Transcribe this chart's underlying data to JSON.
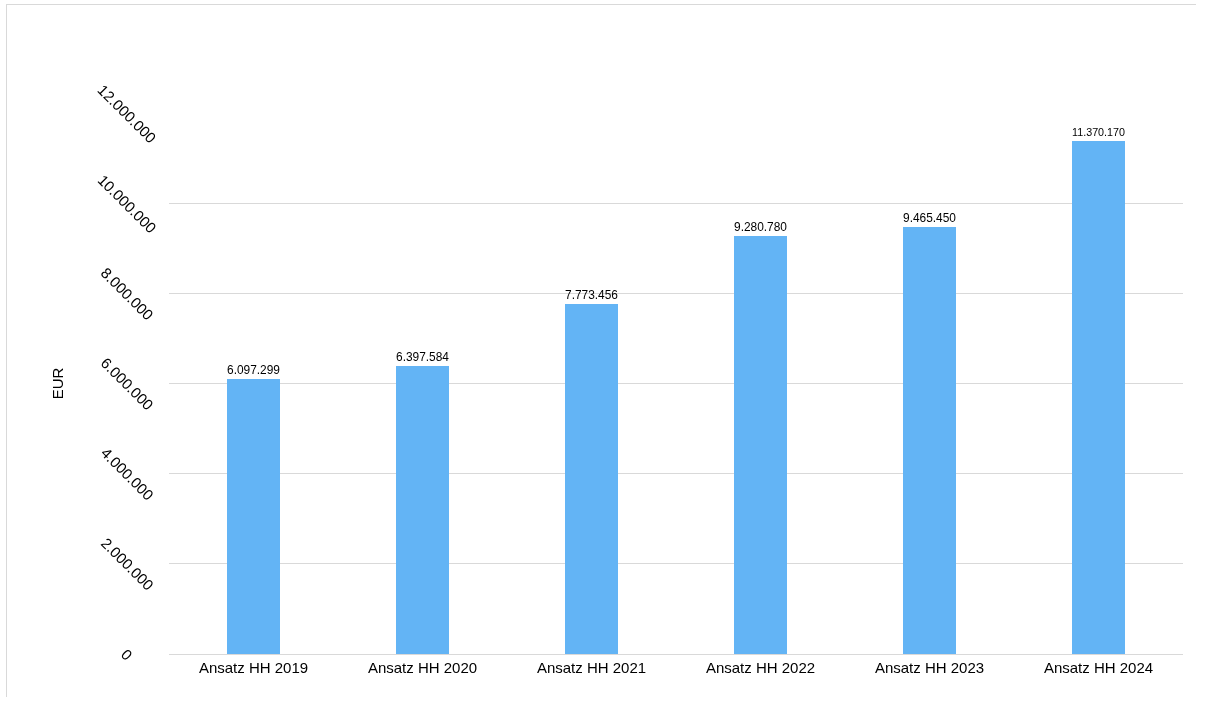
{
  "chart_data": {
    "type": "bar",
    "ylabel": "EUR",
    "categories": [
      "Ansatz HH 2019",
      "Ansatz HH 2020",
      "Ansatz HH 2021",
      "Ansatz HH 2022",
      "Ansatz HH 2023",
      "Ansatz HH 2024"
    ],
    "values": [
      6097299,
      6397584,
      7773456,
      9280780,
      9465450,
      11370170
    ],
    "value_labels": [
      "6.097.299",
      "6.397.584",
      "7.773.456",
      "9.280.780",
      "9.465.450",
      "11.370.170"
    ],
    "color": "#63b4f5",
    "ylim": [
      0,
      12000000
    ],
    "yticks": [
      {
        "value": 0,
        "label": "0"
      },
      {
        "value": 2000000,
        "label": "2.000.000"
      },
      {
        "value": 4000000,
        "label": "4.000.000"
      },
      {
        "value": 6000000,
        "label": "6.000.000"
      },
      {
        "value": 8000000,
        "label": "8.000.000"
      },
      {
        "value": 10000000,
        "label": "10.000.000"
      },
      {
        "value": 12000000,
        "label": "12.000.000"
      }
    ],
    "grid": "y"
  }
}
